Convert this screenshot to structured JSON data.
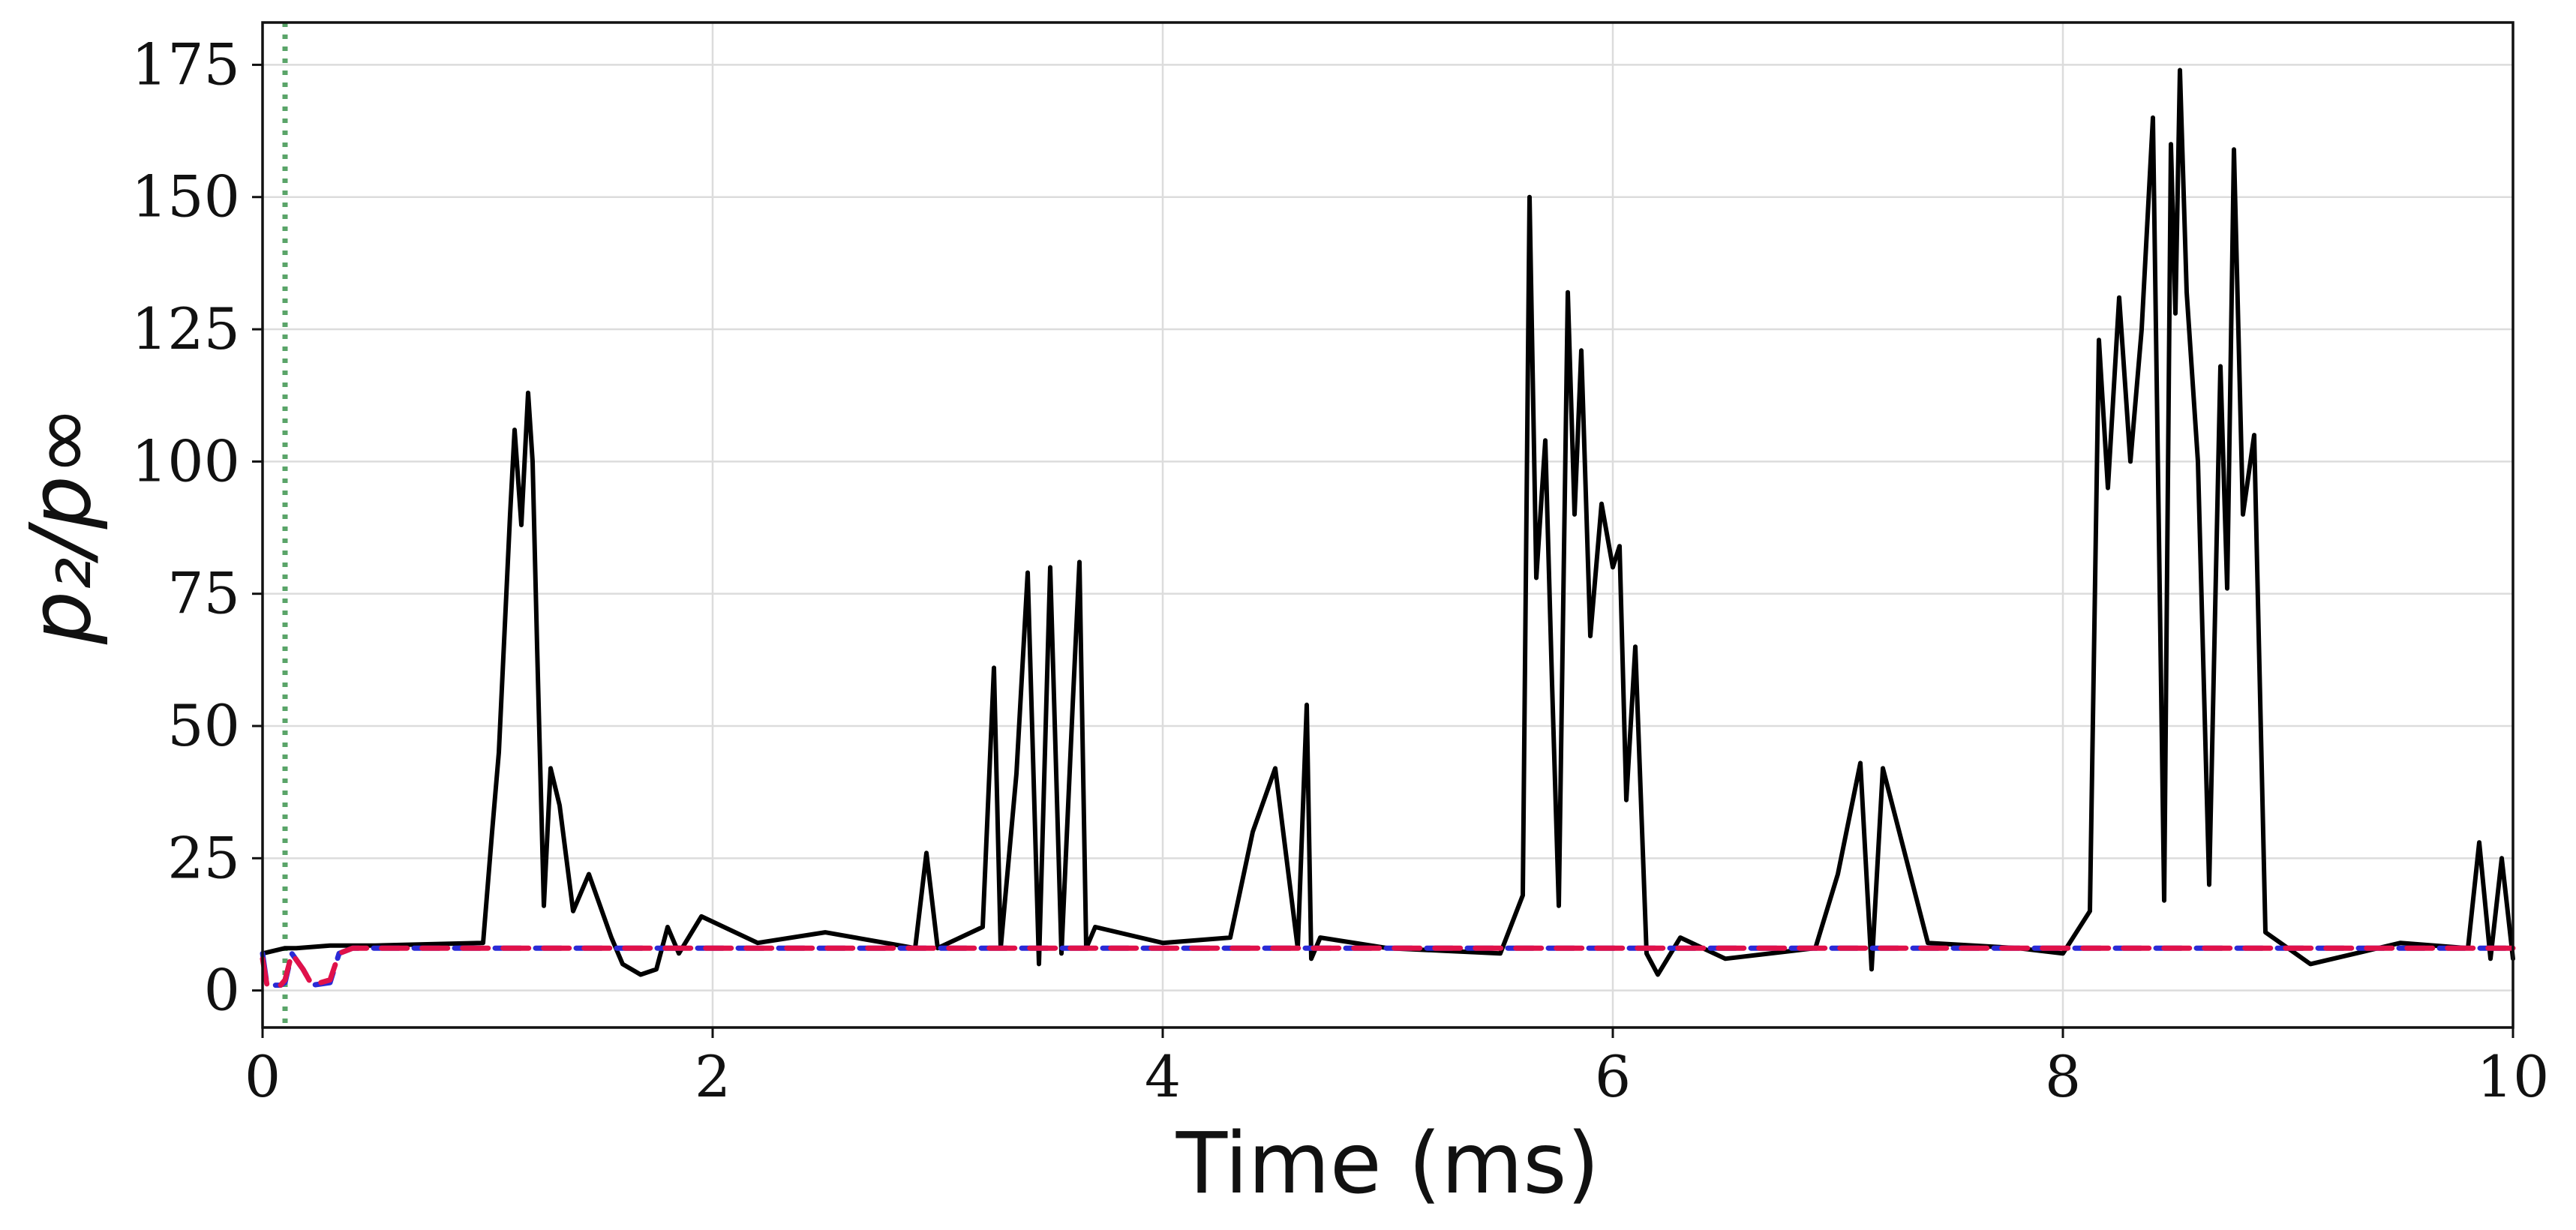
{
  "chart_data": {
    "type": "line",
    "title": "",
    "xlabel": "Time (ms)",
    "ylabel": "p₂/p∞",
    "xlim": [
      0,
      10
    ],
    "ylim": [
      -7,
      183
    ],
    "xticks": [
      0,
      2,
      4,
      6,
      8,
      10
    ],
    "yticks": [
      0,
      25,
      50,
      75,
      100,
      125,
      150,
      175
    ],
    "xtick_labels": [
      "0",
      "2",
      "4",
      "6",
      "8",
      "10"
    ],
    "ytick_labels": [
      "0",
      "25",
      "50",
      "75",
      "100",
      "125",
      "150",
      "175"
    ],
    "grid": true,
    "legend": "none",
    "vertical_marker": {
      "x": 0.1,
      "color": "#5aa469",
      "style": "dotted"
    },
    "series": [
      {
        "color": "#000000",
        "style": "solid",
        "x": [
          0.0,
          0.1,
          0.15,
          0.3,
          0.5,
          0.98,
          1.02,
          1.05,
          1.1,
          1.12,
          1.15,
          1.18,
          1.2,
          1.22,
          1.25,
          1.28,
          1.32,
          1.38,
          1.45,
          1.55,
          1.6,
          1.68,
          1.75,
          1.8,
          1.85,
          1.95,
          2.2,
          2.5,
          2.9,
          2.95,
          3.0,
          3.2,
          3.25,
          3.28,
          3.35,
          3.4,
          3.45,
          3.5,
          3.55,
          3.6,
          3.63,
          3.66,
          3.7,
          4.0,
          4.3,
          4.4,
          4.5,
          4.6,
          4.64,
          4.66,
          4.7,
          5.0,
          5.5,
          5.6,
          5.63,
          5.66,
          5.7,
          5.73,
          5.76,
          5.8,
          5.83,
          5.86,
          5.9,
          5.95,
          6.0,
          6.03,
          6.06,
          6.1,
          6.15,
          6.2,
          6.3,
          6.5,
          6.9,
          7.0,
          7.1,
          7.15,
          7.2,
          7.4,
          7.8,
          8.0,
          8.12,
          8.16,
          8.2,
          8.25,
          8.3,
          8.35,
          8.4,
          8.45,
          8.48,
          8.5,
          8.52,
          8.55,
          8.6,
          8.65,
          8.7,
          8.73,
          8.76,
          8.8,
          8.85,
          8.9,
          9.0,
          9.1,
          9.3,
          9.5,
          9.8,
          9.85,
          9.9,
          9.95,
          10.0
        ],
        "y": [
          7,
          8,
          8,
          8.5,
          8.5,
          9,
          30,
          45,
          90,
          106,
          88,
          113,
          100,
          65,
          16,
          42,
          35,
          15,
          22,
          10,
          5,
          3,
          4,
          12,
          7,
          14,
          9,
          11,
          8,
          26,
          8,
          12,
          61,
          8,
          41,
          79,
          5,
          80,
          7,
          54,
          81,
          8,
          12,
          9,
          10,
          30,
          42,
          8,
          54,
          6,
          10,
          8,
          7,
          18,
          150,
          78,
          104,
          58,
          16,
          132,
          90,
          121,
          67,
          92,
          80,
          84,
          36,
          65,
          7,
          3,
          10,
          6,
          8,
          22,
          43,
          4,
          42,
          9,
          8,
          7,
          15,
          123,
          95,
          131,
          100,
          125,
          165,
          17,
          160,
          128,
          174,
          132,
          100,
          20,
          118,
          76,
          159,
          90,
          105,
          11,
          8,
          5,
          7,
          9,
          8,
          28,
          6,
          25,
          6
        ]
      },
      {
        "color": "#2a2ad6",
        "style": "dashed",
        "x": [
          0.0,
          0.02,
          0.08,
          0.1,
          0.13,
          0.18,
          0.22,
          0.3,
          0.34,
          0.4,
          1.0,
          10.0
        ],
        "y": [
          7,
          1,
          1,
          1.5,
          7,
          4,
          1,
          1.5,
          7,
          8,
          8,
          8
        ]
      },
      {
        "color": "#e0114a",
        "style": "dashed",
        "x": [
          0.0,
          0.02,
          0.08,
          0.1,
          0.13,
          0.18,
          0.22,
          0.3,
          0.34,
          0.4,
          1.0,
          10.0
        ],
        "y": [
          6,
          1,
          1,
          2,
          7,
          4,
          1,
          2,
          7,
          8,
          8,
          8
        ]
      }
    ]
  }
}
